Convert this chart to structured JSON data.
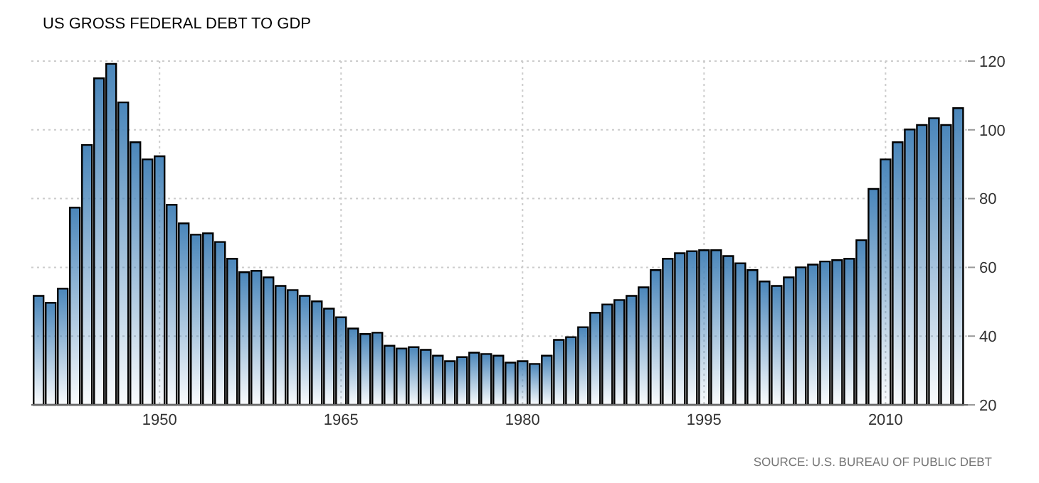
{
  "chart_data": {
    "type": "bar",
    "title": "US GROSS FEDERAL DEBT TO GDP",
    "x": [
      1940,
      1941,
      1942,
      1943,
      1944,
      1945,
      1946,
      1947,
      1948,
      1949,
      1950,
      1951,
      1952,
      1953,
      1954,
      1955,
      1956,
      1957,
      1958,
      1959,
      1960,
      1961,
      1962,
      1963,
      1964,
      1965,
      1966,
      1967,
      1968,
      1969,
      1970,
      1971,
      1972,
      1973,
      1974,
      1975,
      1976,
      1977,
      1978,
      1979,
      1980,
      1981,
      1982,
      1983,
      1984,
      1985,
      1986,
      1987,
      1988,
      1989,
      1990,
      1991,
      1992,
      1993,
      1994,
      1995,
      1996,
      1997,
      1998,
      1999,
      2000,
      2001,
      2002,
      2003,
      2004,
      2005,
      2006,
      2007,
      2008,
      2009,
      2010,
      2011,
      2012,
      2013,
      2014,
      2015,
      2016
    ],
    "values": [
      51.7,
      49.7,
      53.8,
      77.4,
      95.6,
      115,
      119.2,
      108,
      96.4,
      91.4,
      92.3,
      78.2,
      72.8,
      69.5,
      69.9,
      67.4,
      62.5,
      58.6,
      59,
      57.1,
      54.6,
      53.4,
      51.7,
      50.1,
      48,
      45.5,
      42.2,
      40.6,
      41,
      37.2,
      36.4,
      36.8,
      36,
      34.3,
      32.7,
      33.9,
      35.2,
      34.8,
      34.3,
      32.3,
      32.7,
      31.9,
      34.3,
      38.9,
      39.7,
      42.6,
      46.8,
      49.2,
      50.5,
      51.7,
      54.2,
      59.2,
      62.5,
      64.1,
      64.7,
      65,
      65,
      63.3,
      61.2,
      59.2,
      55.9,
      54.6,
      57.1,
      60,
      60.8,
      61.7,
      62.1,
      62.5,
      67.9,
      82.8,
      91.4,
      96.4,
      100.1,
      101.4,
      103.4,
      101.4,
      106.3
    ],
    "color": "#4a86ba",
    "xlim": [
      1939.4,
      2016.8
    ],
    "xticks": [
      1950,
      1965,
      1980,
      1995,
      2010
    ],
    "ylim": [
      20,
      120
    ],
    "yticks": [
      20,
      40,
      60,
      80,
      100,
      120
    ],
    "grid": true,
    "annotations": [
      "SOURCE: U.S. BUREAU OF PUBLIC DEBT"
    ]
  }
}
